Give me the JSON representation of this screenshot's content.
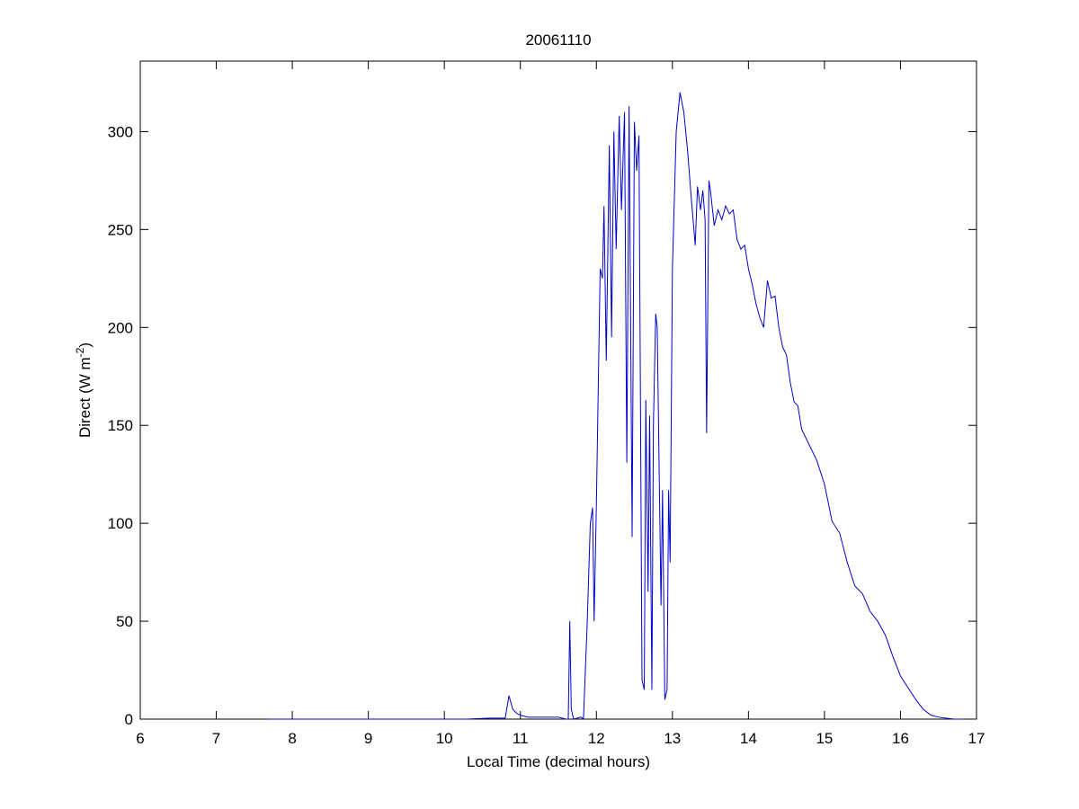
{
  "chart_data": {
    "type": "line",
    "title": "20061110",
    "xlabel": "Local Time (decimal hours)",
    "ylabel": {
      "text": "Direct (W m",
      "sup": "-2",
      "close": ")"
    },
    "x": [
      7.7,
      8.5,
      9.5,
      10.3,
      10.6,
      10.8,
      10.85,
      10.9,
      10.95,
      11.0,
      11.1,
      11.5,
      11.6,
      11.63,
      11.65,
      11.67,
      11.7,
      11.8,
      11.83,
      11.88,
      11.92,
      11.95,
      11.97,
      12.0,
      12.05,
      12.08,
      12.1,
      12.13,
      12.17,
      12.2,
      12.23,
      12.26,
      12.3,
      12.33,
      12.37,
      12.4,
      12.43,
      12.47,
      12.5,
      12.53,
      12.56,
      12.6,
      12.63,
      12.65,
      12.68,
      12.7,
      12.73,
      12.75,
      12.78,
      12.8,
      12.85,
      12.87,
      12.9,
      12.93,
      12.95,
      12.97,
      13.0,
      13.05,
      13.1,
      13.15,
      13.2,
      13.25,
      13.3,
      13.33,
      13.37,
      13.4,
      13.43,
      13.45,
      13.48,
      13.5,
      13.55,
      13.6,
      13.65,
      13.7,
      13.75,
      13.8,
      13.85,
      13.9,
      13.95,
      14.0,
      14.05,
      14.1,
      14.15,
      14.2,
      14.25,
      14.3,
      14.35,
      14.4,
      14.45,
      14.5,
      14.55,
      14.6,
      14.65,
      14.7,
      14.8,
      14.9,
      15.0,
      15.1,
      15.2,
      15.3,
      15.4,
      15.5,
      15.6,
      15.7,
      15.8,
      15.9,
      16.0,
      16.1,
      16.2,
      16.3,
      16.4,
      16.5,
      16.7,
      16.8
    ],
    "series": [
      {
        "color": "#0000cc",
        "values": [
          0,
          0,
          0,
          0,
          0.5,
          0.5,
          12,
          5,
          3,
          2,
          1,
          1,
          0,
          0,
          50,
          5,
          0,
          1,
          0,
          50,
          100,
          108,
          50,
          110,
          230,
          225,
          262,
          183,
          293,
          195,
          300,
          240,
          308,
          260,
          310,
          131,
          313,
          93,
          305,
          280,
          298,
          20,
          15,
          163,
          65,
          155,
          15,
          150,
          207,
          200,
          58,
          117,
          10,
          15,
          117,
          80,
          230,
          300,
          320,
          310,
          290,
          265,
          242,
          272,
          260,
          270,
          255,
          146,
          275,
          270,
          252,
          260,
          255,
          262,
          258,
          260,
          245,
          240,
          242,
          230,
          222,
          212,
          205,
          200,
          224,
          215,
          216,
          200,
          190,
          186,
          172,
          162,
          160,
          148,
          140,
          132,
          120,
          101,
          95,
          80,
          68,
          64,
          55,
          50,
          43,
          32,
          22,
          16,
          10,
          5,
          2,
          1,
          0,
          0
        ]
      }
    ],
    "xlim": [
      6,
      17
    ],
    "xticks": [
      6,
      7,
      8,
      9,
      10,
      11,
      12,
      13,
      14,
      15,
      16,
      17
    ],
    "ylim": [
      0,
      336
    ],
    "yticks": [
      0,
      50,
      100,
      150,
      200,
      250,
      300
    ],
    "grid": false
  }
}
